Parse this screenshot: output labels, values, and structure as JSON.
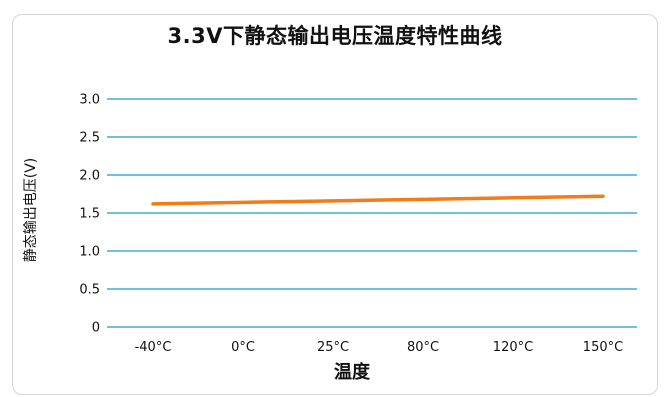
{
  "chart_data": {
    "type": "line",
    "title": "3.3V下静态输出电压温度特性曲线",
    "xlabel": "温度",
    "ylabel": "静态输出电压(V)",
    "categories": [
      "-40°C",
      "0°C",
      "25°C",
      "80°C",
      "120°C",
      "150°C"
    ],
    "yticks": [
      "0",
      "0.5",
      "1.0",
      "1.5",
      "2.0",
      "2.5",
      "3.0"
    ],
    "ylim": [
      0,
      3.0
    ],
    "grid": true,
    "series": [
      {
        "values": [
          1.62,
          1.64,
          1.66,
          1.68,
          1.7,
          1.72
        ],
        "color": "#f07c1a"
      }
    ],
    "gridline_color": "#1b9bd7"
  }
}
